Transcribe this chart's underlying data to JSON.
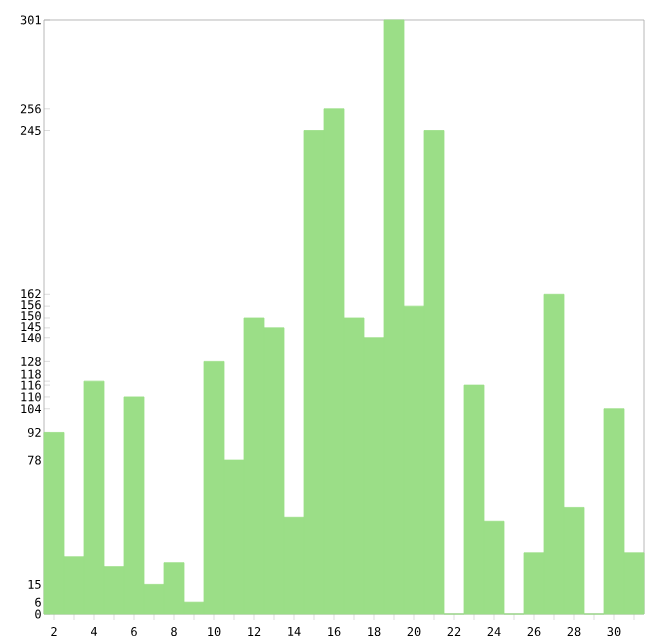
{
  "chart_data": {
    "type": "bar",
    "categories": [
      "2",
      null,
      "4",
      null,
      "6",
      null,
      "8",
      null,
      "10",
      null,
      "12",
      null,
      "14",
      null,
      "16",
      null,
      "18",
      null,
      "20",
      null,
      "22",
      null,
      "24",
      null,
      "26",
      null,
      "28",
      null,
      "30",
      null
    ],
    "values": [
      92,
      29,
      118,
      24,
      110,
      15,
      26,
      6,
      128,
      78,
      150,
      145,
      49,
      245,
      256,
      150,
      140,
      301,
      156,
      245,
      0,
      116,
      47,
      0,
      31,
      162,
      54,
      0,
      104,
      31
    ],
    "color": "#9bde87",
    "ylim": [
      0,
      301
    ],
    "yticks": [
      0,
      6,
      15,
      78,
      92,
      104,
      110,
      116,
      118,
      128,
      140,
      145,
      150,
      156,
      162,
      245,
      256,
      301
    ]
  }
}
